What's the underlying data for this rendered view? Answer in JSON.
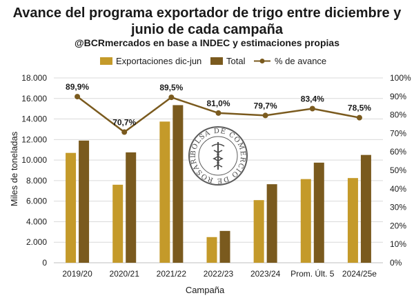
{
  "chart_data": {
    "type": "bar",
    "title_line1": "Avance del programa exportador de trigo entre diciembre y",
    "title_line2": "junio de cada campaña",
    "subtitle": "@BCRmercados en base a INDEC y estimaciones propias",
    "xlabel": "Campaña",
    "ylabel": "Miles de toneladas",
    "ylim": [
      0,
      18000
    ],
    "y2lim": [
      0,
      100
    ],
    "y_ticks": [
      "0",
      "2.000",
      "4.000",
      "6.000",
      "8.000",
      "10.000",
      "12.000",
      "14.000",
      "16.000",
      "18.000"
    ],
    "y2_ticks": [
      "0%",
      "10%",
      "20%",
      "30%",
      "40%",
      "50%",
      "60%",
      "70%",
      "80%",
      "90%",
      "100%"
    ],
    "categories": [
      "2019/20",
      "2020/21",
      "2021/22",
      "2022/23",
      "2023/24",
      "Prom. Últ. 5",
      "2024/25e"
    ],
    "series": [
      {
        "name": "Exportaciones dic-jun",
        "type": "bar",
        "color": "#c49a2a",
        "values": [
          10700,
          7600,
          13750,
          2500,
          6100,
          8150,
          8250
        ]
      },
      {
        "name": "Total",
        "type": "bar",
        "color": "#7a5a1e",
        "values": [
          11900,
          10750,
          15350,
          3100,
          7650,
          9750,
          10500
        ]
      },
      {
        "name": "% de avance",
        "type": "line",
        "color": "#7a5a1e",
        "axis": "right",
        "values": [
          89.9,
          70.7,
          89.5,
          81.0,
          79.7,
          83.4,
          78.5
        ],
        "labels": [
          "89,9%",
          "70,7%",
          "89,5%",
          "81,0%",
          "79,7%",
          "83,4%",
          "78,5%"
        ]
      }
    ],
    "grid": true,
    "legend_position": "top"
  },
  "watermark": {
    "text": "BOLSA DE COMERCIO DE ROSARIO"
  }
}
